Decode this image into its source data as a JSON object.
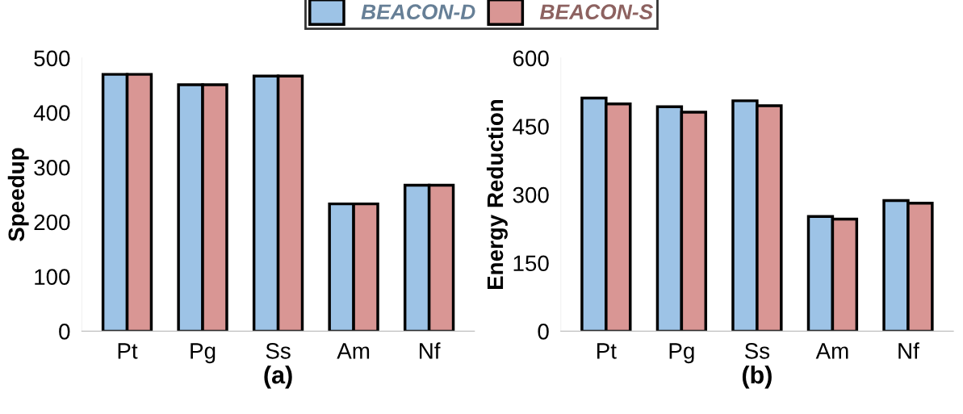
{
  "chart_data": [
    {
      "type": "bar",
      "xlabel": "(a)",
      "ylabel": "Speedup",
      "categories": [
        "Pt",
        "Pg",
        "Ss",
        "Am",
        "Nf"
      ],
      "series": [
        {
          "name": "BEACON-D",
          "color": "#9dc3e6",
          "values": [
            470,
            451,
            467,
            233,
            267
          ]
        },
        {
          "name": "BEACON-S",
          "color": "#d99694",
          "values": [
            470,
            451,
            467,
            233,
            267
          ]
        }
      ],
      "ylim": [
        0,
        500
      ],
      "yticks": [
        0,
        100,
        200,
        300,
        400,
        500
      ],
      "grid": false,
      "legend": "top"
    },
    {
      "type": "bar",
      "xlabel": "(b)",
      "ylabel": "Energy Reduction",
      "categories": [
        "Pt",
        "Pg",
        "Ss",
        "Am",
        "Nf"
      ],
      "series": [
        {
          "color": "#9dc3e6",
          "values": [
            512,
            493,
            506,
            252,
            287
          ]
        },
        {
          "color": "#d99694",
          "values": [
            499,
            481,
            495,
            246,
            281
          ]
        }
      ],
      "ylim": [
        0,
        600
      ],
      "yticks": [
        0,
        150,
        300,
        450,
        600
      ],
      "grid": false,
      "legend": false
    }
  ]
}
